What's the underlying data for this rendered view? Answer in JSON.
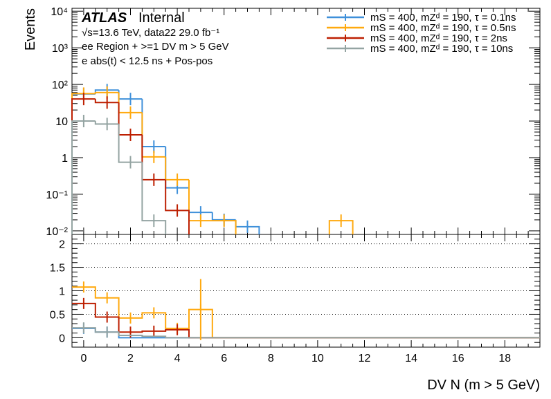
{
  "chart_data": {
    "type": "step-histogram",
    "y_axis_title": "Events",
    "x_axis_title": "DV N (m > 5 GeV)",
    "atlas_label": "ATLAS",
    "atlas_status": "Internal",
    "info_lines": [
      "√s=13.6 TeV, data22 29.0 fb⁻¹",
      "ee Region + >=1 DV m > 5 GeV",
      "e abs(t) < 12.5 ns + Pos-pos"
    ],
    "upper": {
      "scale": "log",
      "ylim": [
        0.008,
        12000
      ],
      "xlim": [
        -0.5,
        19.5
      ],
      "y_tick_labels": [
        "10⁻²",
        "10⁻¹",
        "1",
        "10",
        "10²",
        "10³",
        "10⁴"
      ],
      "y_tick_values": [
        0.01,
        0.1,
        1,
        10,
        100,
        1000,
        10000
      ]
    },
    "lower": {
      "ylim": [
        -0.2,
        2.2
      ],
      "y_tick_labels": [
        "0",
        "0.5",
        "1",
        "1.5",
        "2"
      ],
      "y_tick_values": [
        0,
        0.5,
        1,
        1.5,
        2
      ],
      "dotted_lines": [
        0.5,
        1,
        1.5,
        2
      ]
    },
    "x_tick_labels": [
      "0",
      "2",
      "4",
      "6",
      "8",
      "10",
      "12",
      "14",
      "16",
      "18"
    ],
    "x_tick_values": [
      0,
      2,
      4,
      6,
      8,
      10,
      12,
      14,
      16,
      18
    ],
    "series": [
      {
        "name": "mS = 400, mZd = 190, τ = 0.1ns",
        "legend": "mS = 400, mZᵈ = 190, τ = 0.1ns",
        "color": "#3f90da",
        "values": [
          55,
          70,
          40,
          2.0,
          0.15,
          0.032,
          0.02,
          0.013,
          0,
          0,
          0,
          0
        ],
        "ratio": [
          0.2,
          0.12,
          0,
          0,
          0,
          0,
          0,
          0,
          0,
          0,
          0,
          0
        ]
      },
      {
        "name": "mS = 400, mZd = 190, τ = 0.5ns",
        "legend": "mS = 400, mZᵈ = 190, τ = 0.5ns",
        "color": "#ffa90e",
        "values": [
          56,
          60,
          17,
          1.05,
          0.25,
          0.019,
          0.019,
          0,
          0,
          0,
          0,
          0.019
        ],
        "ratio": [
          1.08,
          0.85,
          0.42,
          0.53,
          0.2,
          0.6,
          0,
          0,
          0,
          0,
          0,
          0
        ]
      },
      {
        "name": "mS = 400, mZd = 190, τ = 2ns",
        "legend": "mS = 400, mZᵈ = 190, τ = 2ns",
        "color": "#bd1f01",
        "values": [
          40,
          32,
          4.2,
          0.25,
          0.036,
          0,
          0,
          0,
          0,
          0,
          0,
          0
        ],
        "ratio": [
          0.73,
          0.44,
          0.12,
          0.14,
          0.17,
          0,
          0,
          0,
          0,
          0,
          0,
          0
        ]
      },
      {
        "name": "mS = 400, mZd = 190, τ = 10ns",
        "legend": "mS = 400, mZᵈ = 190, τ = 10ns",
        "color": "#94a4a2",
        "values": [
          10,
          8.3,
          0.75,
          0.019,
          0,
          0,
          0,
          0,
          0,
          0,
          0,
          0
        ],
        "ratio": [
          0.21,
          0.12,
          0.05,
          0.03,
          0,
          0,
          0,
          0,
          0,
          0,
          0,
          0
        ]
      }
    ]
  }
}
